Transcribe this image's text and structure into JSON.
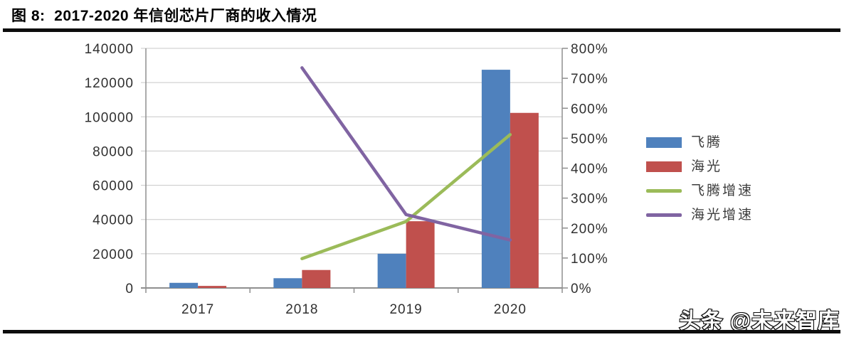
{
  "header": {
    "title": "图 8:  2017-2020 年信创芯片厂商的收入情况"
  },
  "watermark": {
    "text": "头条 @未来智库"
  },
  "chart_data": {
    "type": "combo-bar-line",
    "title": "图 8: 2017-2020 年信创芯片厂商的收入情况",
    "categories": [
      "2017",
      "2018",
      "2019",
      "2020"
    ],
    "series": [
      {
        "name": "飞腾",
        "type": "bar",
        "axis": "left",
        "color": "#4F81BD",
        "values": [
          3000,
          5700,
          20000,
          127500
        ]
      },
      {
        "name": "海光",
        "type": "bar",
        "axis": "left",
        "color": "#C0504D",
        "values": [
          1200,
          10500,
          39000,
          102300
        ]
      },
      {
        "name": "飞腾增速",
        "type": "line",
        "axis": "right",
        "color": "#9BBB59",
        "unit": "%",
        "values": [
          null,
          98,
          222,
          512
        ]
      },
      {
        "name": "海光增速",
        "type": "line",
        "axis": "right",
        "color": "#8064A2",
        "unit": "%",
        "values": [
          null,
          735,
          245,
          160
        ]
      }
    ],
    "left_axis": {
      "min": 0,
      "max": 140000,
      "step": 20000,
      "tick_labels": [
        "0",
        "20000",
        "40000",
        "60000",
        "80000",
        "100000",
        "120000",
        "140000"
      ]
    },
    "right_axis": {
      "min": 0,
      "max": 800,
      "step": 100,
      "tick_labels": [
        "0%",
        "100%",
        "200%",
        "300%",
        "400%",
        "500%",
        "600%",
        "700%",
        "800%"
      ]
    },
    "grid": true,
    "legend_position": "right",
    "colors": {
      "gridline": "#c8c8c8",
      "axis": "#8f8f8f",
      "tick_text": "#303030"
    }
  }
}
